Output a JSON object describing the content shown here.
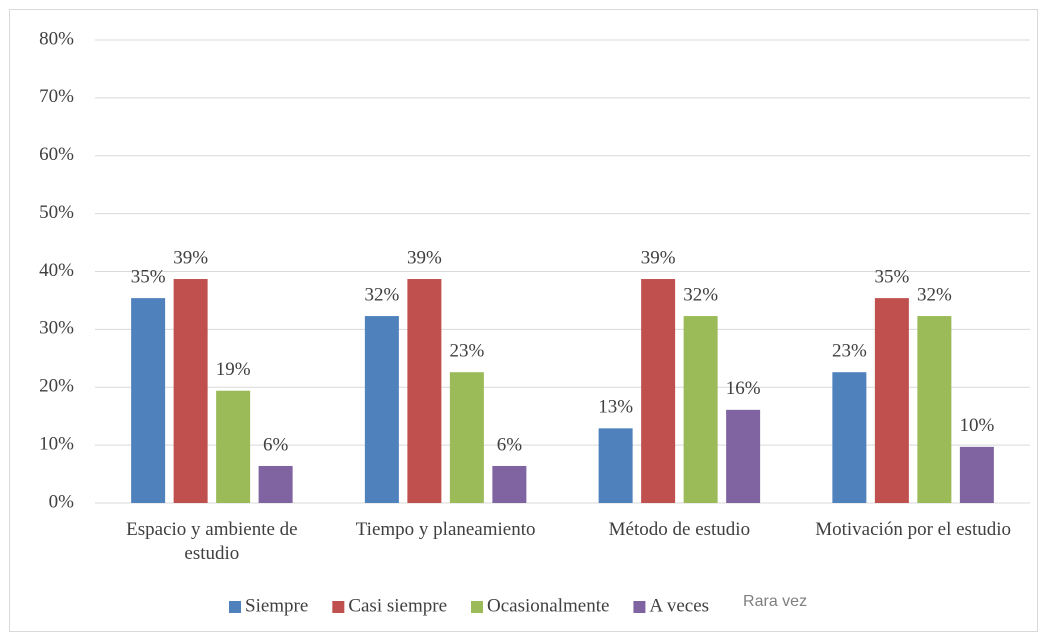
{
  "chart_data": {
    "type": "bar",
    "categories": [
      "Espacio y ambiente de estudio",
      "Tiempo y planeamiento",
      "Método de estudio",
      "Motivación por el estudio"
    ],
    "series": [
      {
        "name": "Siempre",
        "color": "#4f81bd",
        "values": [
          35.4,
          32.3,
          12.9,
          22.6
        ],
        "value_labels": [
          "35%",
          "32%",
          "13%",
          "23%"
        ]
      },
      {
        "name": "Casi siempre",
        "color": "#c0504d",
        "values": [
          38.7,
          38.7,
          38.7,
          35.4
        ],
        "value_labels": [
          "39%",
          "39%",
          "39%",
          "35%"
        ]
      },
      {
        "name": "Ocasionalmente",
        "color": "#9bbb59",
        "values": [
          19.4,
          22.6,
          32.3,
          32.3
        ],
        "value_labels": [
          "19%",
          "23%",
          "32%",
          "32%"
        ]
      },
      {
        "name": "A veces",
        "color": "#8064a2",
        "values": [
          6.4,
          6.4,
          16.1,
          9.7
        ],
        "value_labels": [
          "6%",
          "6%",
          "16%",
          "10%"
        ]
      }
    ],
    "legend_note": "Rara vez",
    "ylim": [
      0,
      80
    ],
    "yticks": [
      {
        "value": 0,
        "label": "0%"
      },
      {
        "value": 10,
        "label": "10%"
      },
      {
        "value": 20,
        "label": "20%"
      },
      {
        "value": 30,
        "label": "30%"
      },
      {
        "value": 40,
        "label": "40%"
      },
      {
        "value": 50,
        "label": "50%"
      },
      {
        "value": 60,
        "label": "60%"
      },
      {
        "value": 70,
        "label": "70%"
      },
      {
        "value": 80,
        "label": "80%"
      }
    ],
    "grid": true,
    "legend": "bottom"
  }
}
